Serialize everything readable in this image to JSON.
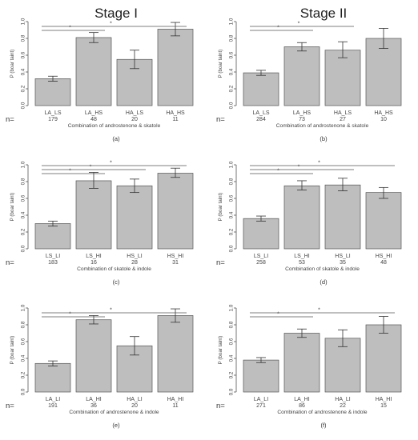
{
  "stage_titles": [
    "Stage I",
    "Stage II"
  ],
  "n_label": "n=",
  "colors": {
    "bar_fill": "#bebebe",
    "bar_stroke": "#555555",
    "axis": "#555555",
    "text": "#444444"
  },
  "chart_data": [
    {
      "type": "bar",
      "panel_label": "(a)",
      "ylabel": "P (boar taint)",
      "xlabel": "Combination of androstenone & skatole",
      "ylim": [
        0,
        1.0
      ],
      "yticks": [
        "0.0",
        "0.2",
        "0.4",
        "0.6",
        "0.8",
        "1.0"
      ],
      "categories": [
        "LA_LS",
        "LA_HS",
        "HA_LS",
        "HA_HS"
      ],
      "counts": [
        "179",
        "48",
        "20",
        "11"
      ],
      "values": [
        0.32,
        0.81,
        0.55,
        0.91
      ],
      "err_low": [
        0.29,
        0.75,
        0.44,
        0.83
      ],
      "err_high": [
        0.35,
        0.87,
        0.66,
        0.99
      ],
      "significance": [
        {
          "from": 0,
          "to": 1,
          "label": "*"
        },
        {
          "from": 0,
          "to": 3,
          "label": "*"
        }
      ]
    },
    {
      "type": "bar",
      "panel_label": "(b)",
      "ylabel": "P (boar taint)",
      "xlabel": "Combination of androstenone & skatole",
      "ylim": [
        0,
        1.0
      ],
      "yticks": [
        "0.0",
        "0.2",
        "0.4",
        "0.6",
        "0.8",
        "1.0"
      ],
      "categories": [
        "LA_LS",
        "LA_HS",
        "HA_LS",
        "HA_HS"
      ],
      "counts": [
        "284",
        "73",
        "27",
        "10"
      ],
      "values": [
        0.39,
        0.7,
        0.66,
        0.8
      ],
      "err_low": [
        0.36,
        0.65,
        0.57,
        0.68
      ],
      "err_high": [
        0.42,
        0.75,
        0.76,
        0.92
      ],
      "significance": [
        {
          "from": 0,
          "to": 1,
          "label": "*"
        },
        {
          "from": 0,
          "to": 2,
          "label": "*"
        }
      ]
    },
    {
      "type": "bar",
      "panel_label": "(c)",
      "ylabel": "P (boar taint)",
      "xlabel": "Combination of skatole & indole",
      "ylim": [
        0,
        1.0
      ],
      "yticks": [
        "0.0",
        "0.2",
        "0.4",
        "0.6",
        "0.8",
        "1.0"
      ],
      "categories": [
        "LS_LI",
        "LS_HI",
        "HS_LI",
        "HS_HI"
      ],
      "counts": [
        "183",
        "16",
        "28",
        "31"
      ],
      "values": [
        0.3,
        0.81,
        0.75,
        0.9
      ],
      "err_low": [
        0.27,
        0.72,
        0.67,
        0.85
      ],
      "err_high": [
        0.33,
        0.91,
        0.83,
        0.96
      ],
      "significance": [
        {
          "from": 0,
          "to": 1,
          "label": "*"
        },
        {
          "from": 0,
          "to": 2,
          "label": "*"
        },
        {
          "from": 0,
          "to": 3,
          "label": "*"
        }
      ]
    },
    {
      "type": "bar",
      "panel_label": "(d)",
      "ylabel": "P (boar taint)",
      "xlabel": "Combination of skatole & indole",
      "ylim": [
        0,
        1.0
      ],
      "yticks": [
        "0.0",
        "0.2",
        "0.4",
        "0.6",
        "0.8",
        "1.0"
      ],
      "categories": [
        "LS_LI",
        "LS_HI",
        "HS_LI",
        "HS_HI"
      ],
      "counts": [
        "258",
        "53",
        "35",
        "48"
      ],
      "values": [
        0.36,
        0.75,
        0.76,
        0.67
      ],
      "err_low": [
        0.33,
        0.7,
        0.69,
        0.6
      ],
      "err_high": [
        0.39,
        0.81,
        0.84,
        0.73
      ],
      "significance": [
        {
          "from": 0,
          "to": 1,
          "label": "*"
        },
        {
          "from": 0,
          "to": 2,
          "label": "*"
        },
        {
          "from": 0,
          "to": 3,
          "label": "*"
        }
      ]
    },
    {
      "type": "bar",
      "panel_label": "(e)",
      "ylabel": "P (boar taint)",
      "xlabel": "Combination of androstenone & indole",
      "ylim": [
        0,
        1.0
      ],
      "yticks": [
        "0.0",
        "0.2",
        "0.4",
        "0.6",
        "0.8",
        "1.0"
      ],
      "categories": [
        "LA_LI",
        "LA_HI",
        "HA_LI",
        "HA_HI"
      ],
      "counts": [
        "191",
        "36",
        "20",
        "11"
      ],
      "values": [
        0.34,
        0.86,
        0.55,
        0.91
      ],
      "err_low": [
        0.31,
        0.81,
        0.44,
        0.83
      ],
      "err_high": [
        0.37,
        0.91,
        0.66,
        0.99
      ],
      "significance": [
        {
          "from": 0,
          "to": 1,
          "label": "*"
        },
        {
          "from": 0,
          "to": 3,
          "label": "*"
        }
      ]
    },
    {
      "type": "bar",
      "panel_label": "(f)",
      "ylabel": "P (boar taint)",
      "xlabel": "Combination of androstenone & indole",
      "ylim": [
        0,
        1.0
      ],
      "yticks": [
        "0.0",
        "0.2",
        "0.4",
        "0.6",
        "0.8",
        "1.0"
      ],
      "categories": [
        "LA_LI",
        "LA_HI",
        "HA_LI",
        "HA_HI"
      ],
      "counts": [
        "271",
        "86",
        "22",
        "15"
      ],
      "values": [
        0.38,
        0.7,
        0.64,
        0.8
      ],
      "err_low": [
        0.35,
        0.65,
        0.54,
        0.7
      ],
      "err_high": [
        0.41,
        0.75,
        0.74,
        0.9
      ],
      "significance": [
        {
          "from": 0,
          "to": 1,
          "label": "*"
        },
        {
          "from": 0,
          "to": 3,
          "label": "*"
        }
      ]
    }
  ]
}
